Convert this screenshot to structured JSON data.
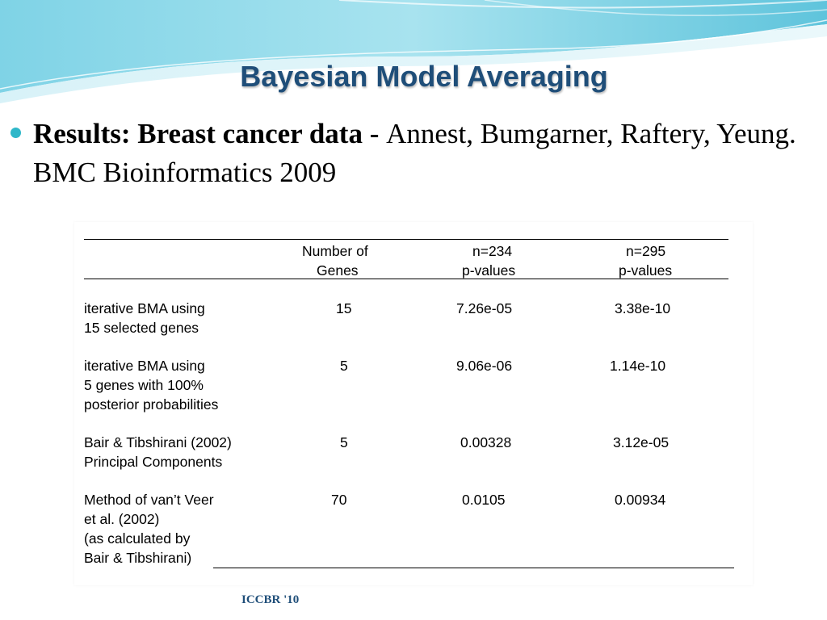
{
  "slide": {
    "title": "Bayesian Model Averaging",
    "bullet": {
      "bold_text": "Results: Breast cancer data - ",
      "text": "Annest, Bumgarner, Raftery, Yeung. BMC Bioinformatics 2009"
    },
    "footer": "ICCBR '10"
  },
  "table": {
    "headers": {
      "genes_line1": "Number of",
      "genes_line2": "Genes",
      "n234_line1": "n=234",
      "n234_line2": "p-values",
      "n295_line1": "n=295",
      "n295_line2": "p-values"
    },
    "rows": [
      {
        "method_lines": [
          "iterative BMA using",
          "15 selected genes"
        ],
        "genes": "15",
        "n234": "7.26e-05",
        "n295": "3.38e-10"
      },
      {
        "method_lines": [
          "iterative BMA using",
          "5 genes with 100%",
          "posterior probabilities"
        ],
        "genes": "5",
        "n234": "9.06e-06",
        "n295": "1.14e-10"
      },
      {
        "method_lines": [
          "Bair & Tibshirani (2002)",
          "Principal Components"
        ],
        "genes": "5",
        "n234": "0.00328",
        "n295": "3.12e-05"
      },
      {
        "method_lines": [
          "Method of van’t Veer",
          "et al. (2002)",
          "(as calculated by",
          "Bair & Tibshirani)"
        ],
        "genes": "70",
        "n234": "0.0105",
        "n295": "0.00934"
      }
    ]
  }
}
